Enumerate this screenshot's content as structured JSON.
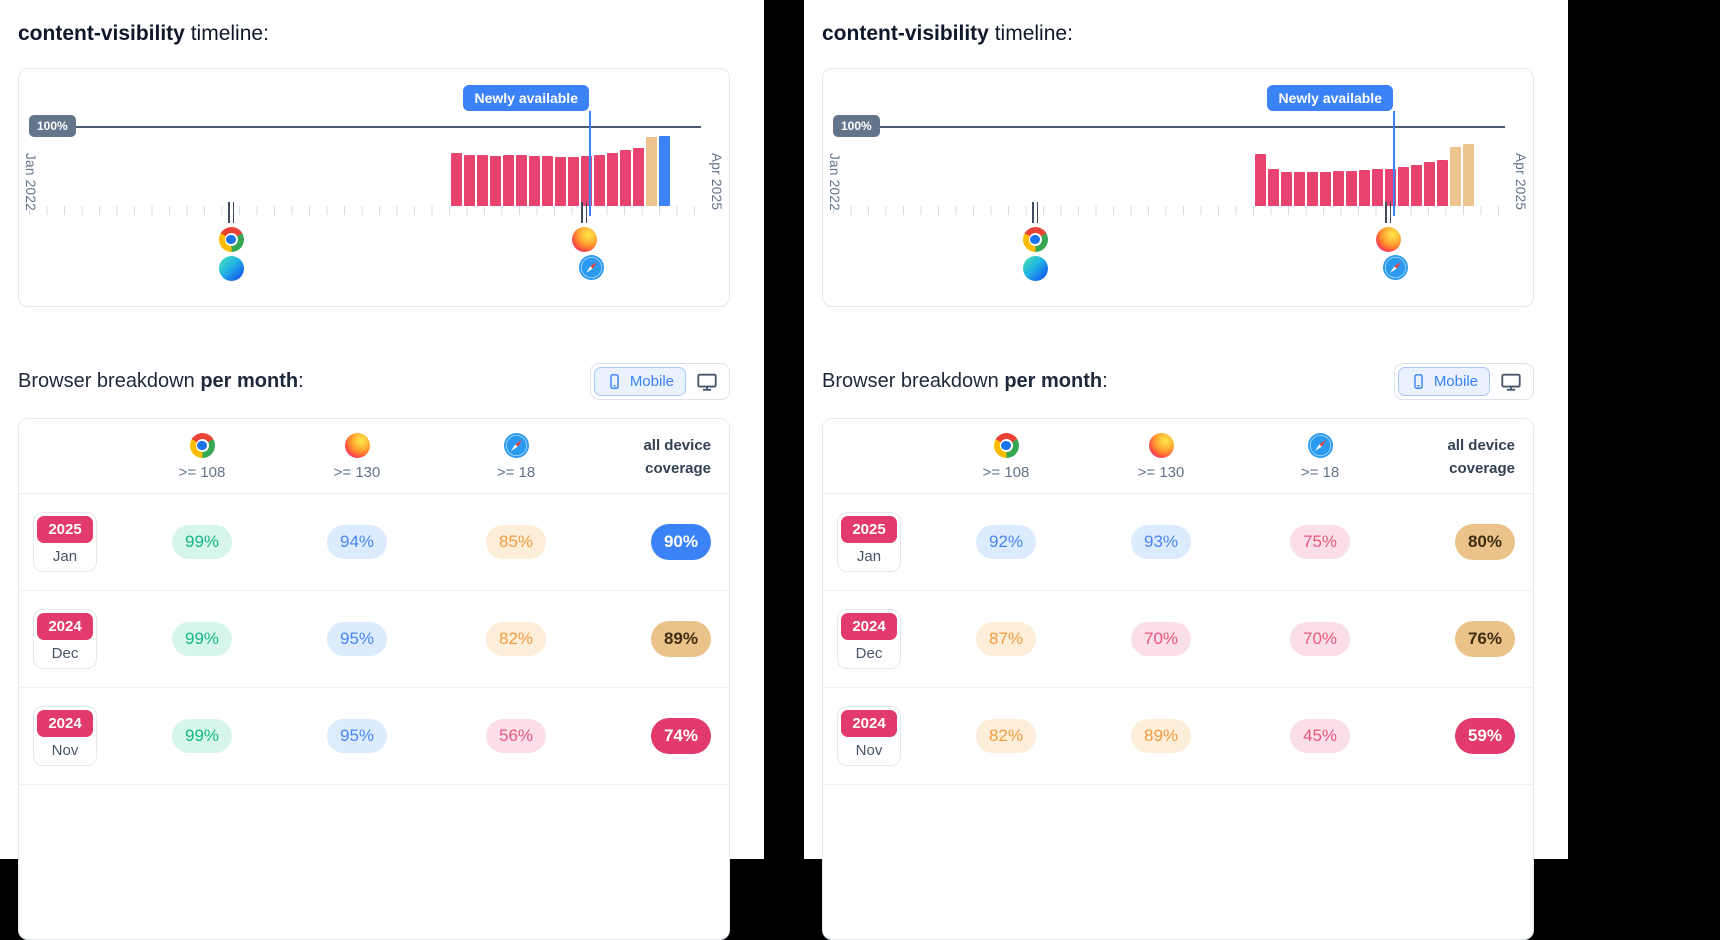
{
  "colors": {
    "accent_blue": "#3b82f6",
    "bar_pink": "#e8426e",
    "bar_tan": "#eec48e",
    "bar_blue": "#3b82f6",
    "year_badge_bg": "#e23a6d",
    "hundred_badge_bg": "#64748b"
  },
  "panels": [
    {
      "title": {
        "code": "content-visibility",
        "rest": "timeline:"
      },
      "timeline": {
        "hundred_label": "100%",
        "newly_badge": "Newly available",
        "start_label": "Jan 2022",
        "end_label": "Apr 2025",
        "marker_icons_first": [
          "chrome",
          "edge"
        ],
        "marker_icons_second": [
          "firefox",
          "safari"
        ],
        "bars": [
          {
            "v": 68,
            "c": "pink"
          },
          {
            "v": 66,
            "c": "pink"
          },
          {
            "v": 65,
            "c": "pink"
          },
          {
            "v": 64,
            "c": "pink"
          },
          {
            "v": 65,
            "c": "pink"
          },
          {
            "v": 65,
            "c": "pink"
          },
          {
            "v": 64,
            "c": "pink"
          },
          {
            "v": 64,
            "c": "pink"
          },
          {
            "v": 63,
            "c": "pink"
          },
          {
            "v": 63,
            "c": "pink"
          },
          {
            "v": 64,
            "c": "pink"
          },
          {
            "v": 65,
            "c": "pink"
          },
          {
            "v": 68,
            "c": "pink"
          },
          {
            "v": 72,
            "c": "pink"
          },
          {
            "v": 74,
            "c": "pink"
          },
          {
            "v": 89,
            "c": "tan"
          },
          {
            "v": 90,
            "c": "blue"
          }
        ]
      },
      "breakdown": {
        "heading_start": "Browser breakdown",
        "heading_bold": "per month",
        "heading_end": ":",
        "toggle": {
          "mobile_label": "Mobile",
          "icons": [
            "mobile-phone",
            "desktop-monitor"
          ]
        }
      },
      "table": {
        "columns": [
          {
            "browser": "chrome",
            "version": ">= 108"
          },
          {
            "browser": "firefox",
            "version": ">= 130"
          },
          {
            "browser": "safari",
            "version": ">= 18"
          },
          {
            "label_line1": "all device",
            "label_line2": "coverage"
          }
        ],
        "rows": [
          {
            "year": "2025",
            "month": "Jan",
            "values": [
              {
                "text": "99%",
                "style": "teal"
              },
              {
                "text": "94%",
                "style": "blue"
              },
              {
                "text": "85%",
                "style": "orange"
              },
              {
                "text": "90%",
                "style": "solid-blue"
              }
            ]
          },
          {
            "year": "2024",
            "month": "Dec",
            "values": [
              {
                "text": "99%",
                "style": "teal"
              },
              {
                "text": "95%",
                "style": "blue"
              },
              {
                "text": "82%",
                "style": "orange"
              },
              {
                "text": "89%",
                "style": "solid-tan"
              }
            ]
          },
          {
            "year": "2024",
            "month": "Nov",
            "values": [
              {
                "text": "99%",
                "style": "teal"
              },
              {
                "text": "95%",
                "style": "blue"
              },
              {
                "text": "56%",
                "style": "pink"
              },
              {
                "text": "74%",
                "style": "solid-pink"
              }
            ]
          }
        ]
      }
    },
    {
      "title": {
        "code": "content-visibility",
        "rest": "timeline:"
      },
      "timeline": {
        "hundred_label": "100%",
        "newly_badge": "Newly available",
        "start_label": "Jan 2022",
        "end_label": "Apr 2025",
        "marker_icons_first": [
          "chrome",
          "edge"
        ],
        "marker_icons_second": [
          "firefox",
          "safari"
        ],
        "bars": [
          {
            "v": 67,
            "c": "pink"
          },
          {
            "v": 47,
            "c": "pink"
          },
          {
            "v": 44,
            "c": "pink"
          },
          {
            "v": 43,
            "c": "pink"
          },
          {
            "v": 43,
            "c": "pink"
          },
          {
            "v": 44,
            "c": "pink"
          },
          {
            "v": 45,
            "c": "pink"
          },
          {
            "v": 45,
            "c": "pink"
          },
          {
            "v": 46,
            "c": "pink"
          },
          {
            "v": 47,
            "c": "pink"
          },
          {
            "v": 48,
            "c": "pink"
          },
          {
            "v": 50,
            "c": "pink"
          },
          {
            "v": 53,
            "c": "pink"
          },
          {
            "v": 56,
            "c": "pink"
          },
          {
            "v": 59,
            "c": "pink"
          },
          {
            "v": 76,
            "c": "tan"
          },
          {
            "v": 80,
            "c": "tan"
          }
        ]
      },
      "breakdown": {
        "heading_start": "Browser breakdown",
        "heading_bold": "per month",
        "heading_end": ":",
        "toggle": {
          "mobile_label": "Mobile",
          "icons": [
            "mobile-phone",
            "desktop-monitor"
          ]
        }
      },
      "table": {
        "columns": [
          {
            "browser": "chrome",
            "version": ">= 108"
          },
          {
            "browser": "firefox",
            "version": ">= 130"
          },
          {
            "browser": "safari",
            "version": ">= 18"
          },
          {
            "label_line1": "all device",
            "label_line2": "coverage"
          }
        ],
        "rows": [
          {
            "year": "2025",
            "month": "Jan",
            "values": [
              {
                "text": "92%",
                "style": "blue"
              },
              {
                "text": "93%",
                "style": "blue"
              },
              {
                "text": "75%",
                "style": "pink"
              },
              {
                "text": "80%",
                "style": "solid-tan"
              }
            ]
          },
          {
            "year": "2024",
            "month": "Dec",
            "values": [
              {
                "text": "87%",
                "style": "orange"
              },
              {
                "text": "70%",
                "style": "pink"
              },
              {
                "text": "70%",
                "style": "pink"
              },
              {
                "text": "76%",
                "style": "solid-tan"
              }
            ]
          },
          {
            "year": "2024",
            "month": "Nov",
            "values": [
              {
                "text": "82%",
                "style": "orange"
              },
              {
                "text": "89%",
                "style": "orange"
              },
              {
                "text": "45%",
                "style": "pink"
              },
              {
                "text": "59%",
                "style": "solid-pink"
              }
            ]
          }
        ]
      }
    }
  ]
}
